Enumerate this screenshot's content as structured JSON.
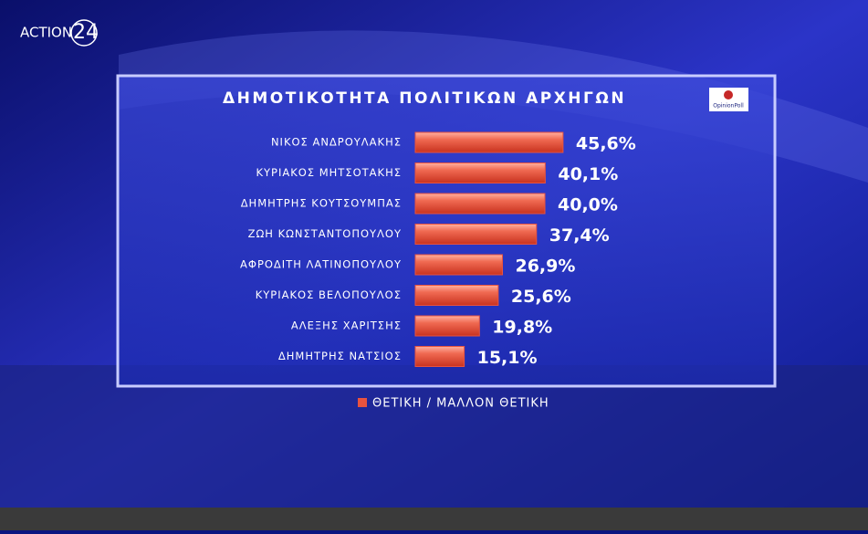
{
  "header": {
    "channel": "ACTION",
    "channel_number": "24",
    "source": "OpinionPoll"
  },
  "chart_data": {
    "type": "bar",
    "orientation": "horizontal",
    "title": "ΔΗΜΟΤΙΚΟΤΗΤΑ ΠΟΛΙΤΙΚΩΝ ΑΡΧΗΓΩΝ",
    "categories": [
      "ΝΙΚΟΣ ΑΝΔΡΟΥΛΑΚΗΣ",
      "ΚΥΡΙΑΚΟΣ ΜΗΤΣΟΤΑΚΗΣ",
      "ΔΗΜΗΤΡΗΣ ΚΟΥΤΣΟΥΜΠΑΣ",
      "ΖΩΗ ΚΩΝΣΤΑΝΤΟΠΟΥΛΟΥ",
      "ΑΦΡΟΔΙΤΗ ΛΑΤΙΝΟΠΟΥΛΟΥ",
      "ΚΥΡΙΑΚΟΣ ΒΕΛΟΠΟΥΛΟΣ",
      "ΑΛΕΞΗΣ ΧΑΡΙΤΣΗΣ",
      "ΔΗΜΗΤΡΗΣ ΝΑΤΣΙΟΣ"
    ],
    "series": [
      {
        "name": "ΘΕΤΙΚΗ / ΜΑΛΛΟΝ ΘΕΤΙΚΗ",
        "color": "#e8533f",
        "values": [
          45.6,
          40.1,
          40.0,
          37.4,
          26.9,
          25.6,
          19.8,
          15.1
        ],
        "value_labels": [
          "45,6%",
          "40,1%",
          "40,0%",
          "37,4%",
          "26,9%",
          "25,6%",
          "19,8%",
          "15,1%"
        ]
      }
    ]
  }
}
